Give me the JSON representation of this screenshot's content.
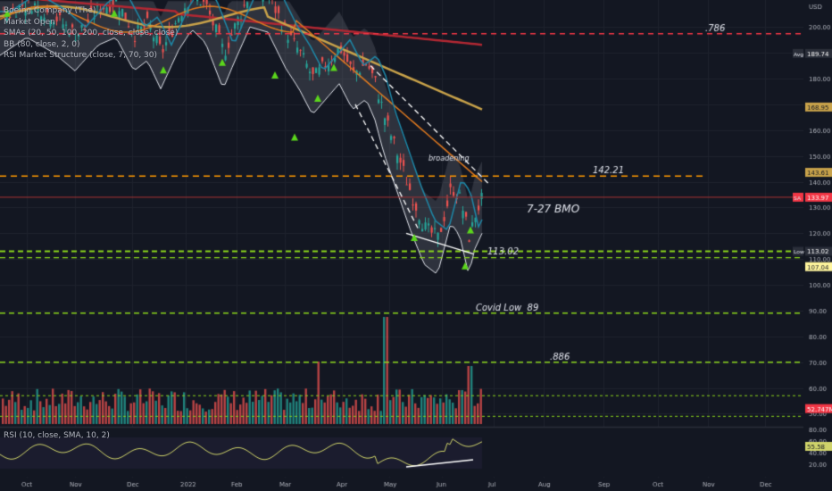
{
  "legend": {
    "title": "Boeing Company (The)",
    "sub": "Market Open",
    "smas": "SMAs (20, 50, 100, 200, close, close, close)",
    "bb": "BB (80, close, 2, 0)",
    "rsi_ms": "RSI Market Structure (close, 7, 70, 30)",
    "rsi": "RSI (10, close, SMA, 10, 2)"
  },
  "colors": {
    "bg": "#131722",
    "up": "#26a69a",
    "down": "#ef5350",
    "red_line": "#f23645",
    "orange": "#ff9800",
    "green_dash": "#8bd61c",
    "white": "#e0e3eb"
  },
  "chart_data": {
    "type": "candlestick",
    "x_ticks": [
      "Oct",
      "Nov",
      "Dec",
      "2022",
      "Feb",
      "Mar",
      "Apr",
      "May",
      "Jun",
      "Jul",
      "Aug",
      "Sep",
      "Oct",
      "Nov",
      "Dec"
    ],
    "price_axis": {
      "unit": "USD",
      "ticks": [
        200,
        190,
        180,
        170,
        160,
        150,
        140,
        130,
        120,
        110,
        100,
        90,
        80,
        70,
        60,
        50
      ],
      "range": [
        46,
        207
      ]
    },
    "levels": [
      {
        "label": ".786",
        "value": 197.4,
        "style": "red-dash"
      },
      {
        "label": "142.21",
        "value": 142.21,
        "style": "orange-dash"
      },
      {
        "label": "113.02",
        "value": 113.02,
        "style": "green-dash"
      },
      {
        "label": "Covid Low  89",
        "value": 89,
        "style": "green-dash"
      },
      {
        "label": ".886",
        "value": 70,
        "style": "green-dash"
      }
    ],
    "axis_badges": [
      {
        "label": "Avg",
        "value": "189.74",
        "price": 189.74
      },
      {
        "label": "",
        "value": "168.95",
        "price": 168.95
      },
      {
        "label": "",
        "value": "143.61",
        "price": 143.61
      },
      {
        "label": "SA",
        "value": "133.97",
        "price": 133.97
      },
      {
        "label": "Low",
        "value": "113.02",
        "price": 113.02
      },
      {
        "label": "",
        "value": "107.04",
        "price": 107.04
      },
      {
        "label": "",
        "value": "52.747M",
        "price": 52
      }
    ],
    "annotations": [
      {
        "text": "broadening"
      },
      {
        "text": "7-27 BMO"
      }
    ],
    "rsi": {
      "label": "RSI (10, close, SMA, 10, 2)",
      "ticks": [
        80,
        60,
        40,
        20
      ],
      "current": "55.58"
    }
  }
}
